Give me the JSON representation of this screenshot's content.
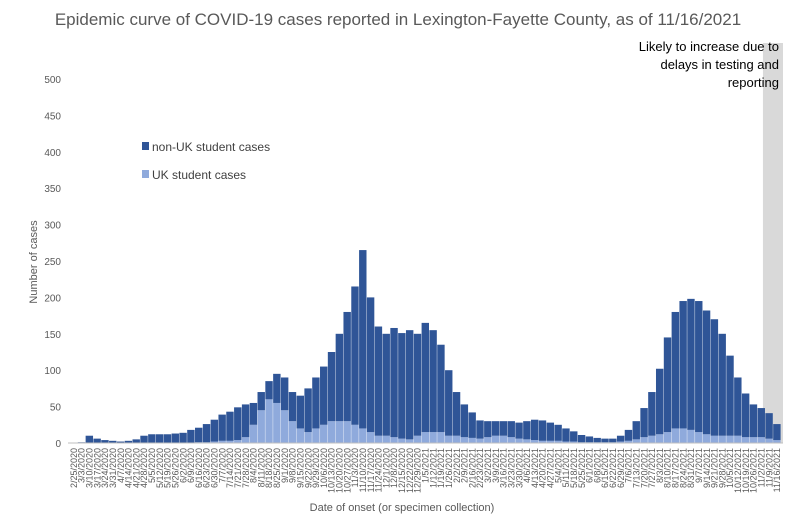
{
  "chart_data": {
    "type": "bar",
    "title": "Epidemic curve of COVID-19 cases reported in Lexington-Fayette County, as of 11/16/2021",
    "xlabel": "Date of onset (or specimen collection)",
    "ylabel": "Number of cases",
    "ylim": [
      0,
      500
    ],
    "yticks": [
      0,
      50,
      100,
      150,
      200,
      250,
      300,
      350,
      400,
      450,
      500
    ],
    "grid": false,
    "stacked": true,
    "legend_position": "upper-left",
    "x_start": "2/25/2020",
    "x_end": "11/16/2021",
    "tick_interval_days": 7,
    "categories": [
      "2/25/2020",
      "3/3/2020",
      "3/10/2020",
      "3/17/2020",
      "3/24/2020",
      "3/31/2020",
      "4/7/2020",
      "4/14/2020",
      "4/21/2020",
      "4/28/2020",
      "5/5/2020",
      "5/12/2020",
      "5/19/2020",
      "5/26/2020",
      "6/2/2020",
      "6/9/2020",
      "6/16/2020",
      "6/23/2020",
      "6/30/2020",
      "7/7/2020",
      "7/14/2020",
      "7/21/2020",
      "7/28/2020",
      "8/4/2020",
      "8/11/2020",
      "8/18/2020",
      "8/25/2020",
      "9/1/2020",
      "9/8/2020",
      "9/15/2020",
      "9/22/2020",
      "9/29/2020",
      "10/6/2020",
      "10/13/2020",
      "10/20/2020",
      "10/27/2020",
      "11/3/2020",
      "11/10/2020",
      "11/17/2020",
      "11/24/2020",
      "12/1/2020",
      "12/8/2020",
      "12/15/2020",
      "12/22/2020",
      "12/29/2020",
      "1/5/2021",
      "1/12/2021",
      "1/19/2021",
      "1/26/2021",
      "2/2/2021",
      "2/9/2021",
      "2/16/2021",
      "2/23/2021",
      "3/2/2021",
      "3/9/2021",
      "3/16/2021",
      "3/23/2021",
      "3/30/2021",
      "4/6/2021",
      "4/13/2021",
      "4/20/2021",
      "4/27/2021",
      "5/4/2021",
      "5/11/2021",
      "5/18/2021",
      "5/25/2021",
      "6/1/2021",
      "6/8/2021",
      "6/15/2021",
      "6/22/2021",
      "6/29/2021",
      "7/6/2021",
      "7/13/2021",
      "7/20/2021",
      "7/27/2021",
      "8/3/2021",
      "8/10/2021",
      "8/17/2021",
      "8/24/2021",
      "8/31/2021",
      "9/7/2021",
      "9/14/2021",
      "9/21/2021",
      "9/28/2021",
      "10/5/2021",
      "10/12/2021",
      "10/19/2021",
      "10/26/2021",
      "11/2/2021",
      "11/9/2021",
      "11/16/2021"
    ],
    "series": [
      {
        "name": "UK student cases",
        "color": "#8faadc",
        "values": [
          0,
          0,
          0,
          0,
          0,
          0,
          0,
          0,
          0,
          0,
          0,
          0,
          0,
          0,
          0,
          0,
          1,
          1,
          2,
          3,
          3,
          4,
          8,
          25,
          45,
          60,
          55,
          45,
          30,
          20,
          15,
          20,
          25,
          30,
          30,
          30,
          25,
          20,
          15,
          10,
          10,
          8,
          6,
          5,
          10,
          15,
          15,
          15,
          10,
          10,
          8,
          7,
          6,
          8,
          10,
          10,
          8,
          6,
          5,
          4,
          3,
          3,
          3,
          2,
          2,
          1,
          1,
          1,
          1,
          1,
          2,
          3,
          5,
          8,
          10,
          12,
          15,
          20,
          20,
          18,
          15,
          12,
          10,
          10,
          10,
          10,
          8,
          8,
          8,
          6,
          4
        ]
      },
      {
        "name": "non-UK student cases",
        "color": "#2f5597",
        "values": [
          0,
          1,
          10,
          6,
          4,
          3,
          2,
          3,
          5,
          10,
          12,
          12,
          12,
          13,
          14,
          18,
          20,
          25,
          30,
          36,
          40,
          45,
          45,
          30,
          25,
          25,
          40,
          45,
          40,
          45,
          60,
          70,
          80,
          95,
          120,
          150,
          190,
          245,
          185,
          150,
          140,
          150,
          145,
          150,
          140,
          150,
          140,
          120,
          90,
          60,
          45,
          35,
          25,
          22,
          20,
          20,
          22,
          22,
          25,
          28,
          28,
          25,
          22,
          18,
          14,
          10,
          8,
          6,
          5,
          5,
          8,
          15,
          25,
          40,
          60,
          90,
          130,
          160,
          175,
          180,
          180,
          170,
          160,
          140,
          110,
          80,
          60,
          45,
          40,
          35,
          22
        ]
      }
    ],
    "annotation": {
      "text_lines": [
        "Likely to increase due to",
        "delays in testing and",
        "reporting"
      ],
      "shade_from": "10/31/2021",
      "shade_to": "11/16/2021",
      "shade_color": "#d9d9d9"
    }
  }
}
